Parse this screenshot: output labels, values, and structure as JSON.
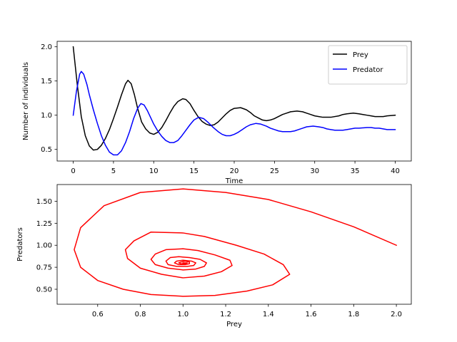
{
  "chart_data": [
    {
      "type": "line",
      "title": "",
      "xlabel": "Time",
      "ylabel": "Number of individuals",
      "xlim": [
        -2,
        42
      ],
      "ylim": [
        0.33,
        2.08
      ],
      "xticks": [
        0,
        5,
        10,
        15,
        20,
        25,
        30,
        35,
        40
      ],
      "xtick_labels": [
        "0",
        "5",
        "10",
        "15",
        "20",
        "25",
        "30",
        "35",
        "40"
      ],
      "yticks": [
        0.5,
        1.0,
        1.5,
        2.0
      ],
      "ytick_labels": [
        "0.5",
        "1.0",
        "1.5",
        "2.0"
      ],
      "grid": false,
      "legend": "top-right",
      "series": [
        {
          "name": "Prey",
          "color": "#000000",
          "points": [
            [
              0,
              2.0
            ],
            [
              0.5,
              1.45
            ],
            [
              1,
              0.98
            ],
            [
              1.5,
              0.7
            ],
            [
              2,
              0.55
            ],
            [
              2.5,
              0.49
            ],
            [
              3,
              0.5
            ],
            [
              3.5,
              0.56
            ],
            [
              4,
              0.66
            ],
            [
              4.5,
              0.79
            ],
            [
              5,
              0.95
            ],
            [
              5.5,
              1.12
            ],
            [
              6,
              1.3
            ],
            [
              6.5,
              1.46
            ],
            [
              6.8,
              1.51
            ],
            [
              7.2,
              1.46
            ],
            [
              7.6,
              1.3
            ],
            [
              8,
              1.1
            ],
            [
              8.5,
              0.9
            ],
            [
              9,
              0.8
            ],
            [
              9.5,
              0.74
            ],
            [
              10,
              0.72
            ],
            [
              10.5,
              0.75
            ],
            [
              11,
              0.82
            ],
            [
              11.5,
              0.92
            ],
            [
              12,
              1.03
            ],
            [
              12.5,
              1.13
            ],
            [
              13,
              1.2
            ],
            [
              13.6,
              1.24
            ],
            [
              14,
              1.23
            ],
            [
              14.5,
              1.17
            ],
            [
              15,
              1.07
            ],
            [
              15.5,
              0.98
            ],
            [
              16,
              0.91
            ],
            [
              16.5,
              0.87
            ],
            [
              17,
              0.85
            ],
            [
              17.5,
              0.86
            ],
            [
              18,
              0.9
            ],
            [
              18.5,
              0.96
            ],
            [
              19,
              1.02
            ],
            [
              19.5,
              1.07
            ],
            [
              20,
              1.1
            ],
            [
              20.8,
              1.11
            ],
            [
              21.5,
              1.08
            ],
            [
              22,
              1.04
            ],
            [
              22.5,
              0.99
            ],
            [
              23,
              0.96
            ],
            [
              23.5,
              0.93
            ],
            [
              24,
              0.92
            ],
            [
              24.5,
              0.93
            ],
            [
              25,
              0.95
            ],
            [
              25.5,
              0.98
            ],
            [
              26,
              1.01
            ],
            [
              26.5,
              1.03
            ],
            [
              27,
              1.05
            ],
            [
              27.8,
              1.06
            ],
            [
              28.5,
              1.05
            ],
            [
              29,
              1.03
            ],
            [
              29.5,
              1.01
            ],
            [
              30,
              0.99
            ],
            [
              30.5,
              0.98
            ],
            [
              31,
              0.97
            ],
            [
              31.5,
              0.97
            ],
            [
              32,
              0.97
            ],
            [
              33,
              0.99
            ],
            [
              33.5,
              1.01
            ],
            [
              34,
              1.02
            ],
            [
              34.8,
              1.03
            ],
            [
              35.5,
              1.02
            ],
            [
              36,
              1.01
            ],
            [
              36.5,
              1.0
            ],
            [
              37,
              0.99
            ],
            [
              37.5,
              0.98
            ],
            [
              38,
              0.98
            ],
            [
              38.5,
              0.98
            ],
            [
              39,
              0.99
            ],
            [
              40,
              1.0
            ]
          ]
        },
        {
          "name": "Predator",
          "color": "#0000ff",
          "points": [
            [
              0,
              1.0
            ],
            [
              0.4,
              1.35
            ],
            [
              0.8,
              1.6
            ],
            [
              1,
              1.64
            ],
            [
              1.3,
              1.6
            ],
            [
              1.7,
              1.45
            ],
            [
              2,
              1.3
            ],
            [
              2.5,
              1.08
            ],
            [
              3,
              0.88
            ],
            [
              3.5,
              0.7
            ],
            [
              4,
              0.56
            ],
            [
              4.5,
              0.46
            ],
            [
              5,
              0.42
            ],
            [
              5.5,
              0.42
            ],
            [
              6,
              0.48
            ],
            [
              6.5,
              0.6
            ],
            [
              7,
              0.76
            ],
            [
              7.5,
              0.95
            ],
            [
              8,
              1.1
            ],
            [
              8.4,
              1.17
            ],
            [
              8.8,
              1.15
            ],
            [
              9.2,
              1.07
            ],
            [
              9.6,
              0.97
            ],
            [
              10,
              0.87
            ],
            [
              10.5,
              0.77
            ],
            [
              11,
              0.69
            ],
            [
              11.5,
              0.63
            ],
            [
              12,
              0.6
            ],
            [
              12.5,
              0.6
            ],
            [
              13,
              0.63
            ],
            [
              13.5,
              0.7
            ],
            [
              14,
              0.78
            ],
            [
              14.5,
              0.86
            ],
            [
              15,
              0.93
            ],
            [
              15.6,
              0.97
            ],
            [
              16.2,
              0.95
            ],
            [
              16.8,
              0.89
            ],
            [
              17.4,
              0.82
            ],
            [
              18,
              0.76
            ],
            [
              18.5,
              0.72
            ],
            [
              19,
              0.7
            ],
            [
              19.5,
              0.7
            ],
            [
              20,
              0.72
            ],
            [
              20.5,
              0.75
            ],
            [
              21,
              0.79
            ],
            [
              21.5,
              0.83
            ],
            [
              22,
              0.86
            ],
            [
              22.7,
              0.88
            ],
            [
              23.3,
              0.87
            ],
            [
              24,
              0.84
            ],
            [
              24.5,
              0.81
            ],
            [
              25,
              0.79
            ],
            [
              25.5,
              0.77
            ],
            [
              26,
              0.76
            ],
            [
              26.5,
              0.76
            ],
            [
              27,
              0.76
            ],
            [
              27.5,
              0.77
            ],
            [
              28,
              0.79
            ],
            [
              28.5,
              0.81
            ],
            [
              29,
              0.83
            ],
            [
              29.8,
              0.84
            ],
            [
              30.5,
              0.83
            ],
            [
              31,
              0.82
            ],
            [
              31.5,
              0.8
            ],
            [
              32,
              0.79
            ],
            [
              32.5,
              0.78
            ],
            [
              33,
              0.78
            ],
            [
              33.5,
              0.78
            ],
            [
              34,
              0.79
            ],
            [
              34.5,
              0.8
            ],
            [
              35,
              0.81
            ],
            [
              35.5,
              0.81
            ],
            [
              36.5,
              0.82
            ],
            [
              37,
              0.82
            ],
            [
              37.5,
              0.81
            ],
            [
              38,
              0.81
            ],
            [
              38.5,
              0.8
            ],
            [
              39,
              0.79
            ],
            [
              40,
              0.79
            ]
          ]
        }
      ]
    },
    {
      "type": "line",
      "title": "",
      "xlabel": "Prey",
      "ylabel": "Predators",
      "xlim": [
        0.41,
        2.07
      ],
      "ylim": [
        0.33,
        1.69
      ],
      "xticks": [
        0.6,
        0.8,
        1.0,
        1.2,
        1.4,
        1.6,
        1.8,
        2.0
      ],
      "xtick_labels": [
        "0.6",
        "0.8",
        "1.0",
        "1.2",
        "1.4",
        "1.6",
        "1.8",
        "2.0"
      ],
      "yticks": [
        0.5,
        0.75,
        1.0,
        1.25,
        1.5
      ],
      "ytick_labels": [
        "0.50",
        "0.75",
        "1.00",
        "1.25",
        "1.50"
      ],
      "grid": false,
      "legend": "none",
      "series": [
        {
          "color": "#ff0000",
          "points": [
            [
              2.0,
              1.0
            ],
            [
              1.8,
              1.21
            ],
            [
              1.6,
              1.38
            ],
            [
              1.4,
              1.52
            ],
            [
              1.2,
              1.6
            ],
            [
              1.0,
              1.64
            ],
            [
              0.8,
              1.6
            ],
            [
              0.63,
              1.45
            ],
            [
              0.52,
              1.2
            ],
            [
              0.49,
              0.95
            ],
            [
              0.52,
              0.75
            ],
            [
              0.6,
              0.6
            ],
            [
              0.72,
              0.5
            ],
            [
              0.85,
              0.44
            ],
            [
              1.0,
              0.42
            ],
            [
              1.15,
              0.43
            ],
            [
              1.3,
              0.48
            ],
            [
              1.42,
              0.55
            ],
            [
              1.5,
              0.67
            ],
            [
              1.47,
              0.78
            ],
            [
              1.38,
              0.9
            ],
            [
              1.25,
              1.0
            ],
            [
              1.1,
              1.1
            ],
            [
              1.0,
              1.14
            ],
            [
              0.85,
              1.15
            ],
            [
              0.77,
              1.05
            ],
            [
              0.73,
              0.95
            ],
            [
              0.74,
              0.85
            ],
            [
              0.8,
              0.74
            ],
            [
              0.9,
              0.67
            ],
            [
              1.0,
              0.63
            ],
            [
              1.1,
              0.65
            ],
            [
              1.18,
              0.7
            ],
            [
              1.23,
              0.77
            ],
            [
              1.22,
              0.83
            ],
            [
              1.15,
              0.89
            ],
            [
              1.07,
              0.94
            ],
            [
              1.0,
              0.96
            ],
            [
              0.92,
              0.95
            ],
            [
              0.87,
              0.9
            ],
            [
              0.85,
              0.84
            ],
            [
              0.87,
              0.78
            ],
            [
              0.93,
              0.74
            ],
            [
              1.0,
              0.72
            ],
            [
              1.06,
              0.73
            ],
            [
              1.1,
              0.76
            ],
            [
              1.11,
              0.8
            ],
            [
              1.08,
              0.84
            ],
            [
              1.03,
              0.86
            ],
            [
              0.98,
              0.87
            ],
            [
              0.94,
              0.86
            ],
            [
              0.92,
              0.82
            ],
            [
              0.93,
              0.78
            ],
            [
              0.97,
              0.76
            ],
            [
              1.02,
              0.76
            ],
            [
              1.05,
              0.77
            ],
            [
              1.06,
              0.8
            ],
            [
              1.04,
              0.82
            ],
            [
              1.0,
              0.83
            ],
            [
              0.97,
              0.82
            ],
            [
              0.96,
              0.8
            ],
            [
              0.98,
              0.78
            ],
            [
              1.01,
              0.78
            ],
            [
              1.03,
              0.79
            ],
            [
              1.03,
              0.81
            ],
            [
              1.01,
              0.82
            ],
            [
              0.99,
              0.81
            ],
            [
              0.98,
              0.8
            ],
            [
              0.99,
              0.79
            ],
            [
              1.01,
              0.79
            ],
            [
              1.02,
              0.8
            ],
            [
              1.0,
              0.8
            ]
          ]
        }
      ]
    }
  ]
}
